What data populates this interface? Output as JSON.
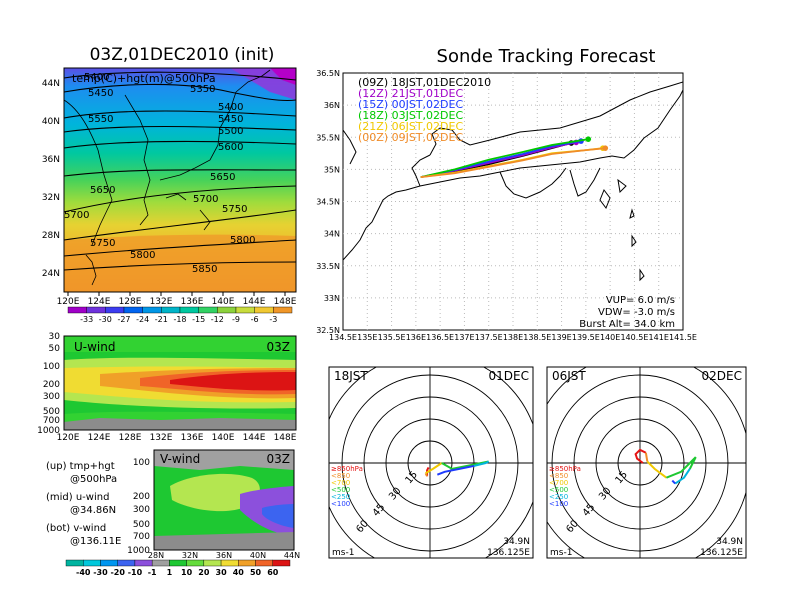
{
  "figure": {
    "left_title": "03Z,01DEC2010 (init)",
    "right_title": "Sonde Tracking Forecast"
  },
  "chart_data": [
    {
      "type": "heatmap",
      "panel": "temperature-height-map",
      "overlay_text": "temp(C)+hgt(m)@500hPa",
      "x_ticks": [
        "120E",
        "124E",
        "128E",
        "132E",
        "136E",
        "140E",
        "144E",
        "148E"
      ],
      "y_ticks": [
        "24N",
        "28N",
        "32N",
        "36N",
        "40N",
        "44N"
      ],
      "contour_labels": [
        "5400",
        "5350",
        "5450",
        "5400",
        "5450",
        "5550",
        "5500",
        "5550",
        "5600",
        "5650",
        "5650",
        "5700",
        "5750",
        "5700",
        "5750",
        "5800",
        "5800",
        "5850"
      ],
      "colorbar_labels": [
        "-33",
        "-30",
        "-27",
        "-24",
        "-21",
        "-18",
        "-15",
        "-12",
        "-9",
        "-6",
        "-3"
      ],
      "colorbar_colors": [
        "#a000c8",
        "#6e32dc",
        "#3c3cf0",
        "#0064f0",
        "#0096e6",
        "#00b4c8",
        "#00c8a0",
        "#32d264",
        "#8cd23c",
        "#c8dc3c",
        "#f0c832",
        "#f09628"
      ]
    },
    {
      "type": "heatmap",
      "panel": "u-wind-cross-section",
      "label": "U-wind",
      "time_label": "03Z",
      "x_ticks": [
        "120E",
        "124E",
        "128E",
        "132E",
        "136E",
        "140E",
        "144E",
        "148E"
      ],
      "y_ticks": [
        "30",
        "50",
        "100",
        "200",
        "300",
        "500",
        "700",
        "1000"
      ]
    },
    {
      "type": "heatmap",
      "panel": "v-wind-cross-section",
      "label": "V-wind",
      "time_label": "03Z",
      "x_ticks": [
        "28N",
        "32N",
        "36N",
        "40N",
        "44N"
      ],
      "y_ticks": [
        "100",
        "200",
        "300",
        "500",
        "700",
        "1000"
      ],
      "colorbar_labels": [
        "-40",
        "-30",
        "-20",
        "-10",
        "-1",
        "1",
        "10",
        "20",
        "30",
        "40",
        "50",
        "60"
      ],
      "colorbar_colors": [
        "#00b4a0",
        "#00c8dc",
        "#0096f0",
        "#3c64f0",
        "#8c50dc",
        "#a0a0a0",
        "#1ec832",
        "#64dc3c",
        "#b4e650",
        "#f0dc32",
        "#f0a028",
        "#f06428",
        "#dc1414"
      ]
    },
    {
      "type": "line",
      "panel": "sonde-track-map",
      "x_ticks": [
        "134.5E",
        "135E",
        "135.5E",
        "136E",
        "136.5E",
        "137E",
        "137.5E",
        "138E",
        "138.5E",
        "139E",
        "139.5E",
        "140E",
        "140.5E",
        "141E",
        "141.5E"
      ],
      "y_ticks": [
        "36.5N",
        "36N",
        "35.5N",
        "35N",
        "34.5N",
        "34N",
        "33.5N",
        "33N",
        "32.5N"
      ],
      "xlim": [
        134.5,
        141.5
      ],
      "ylim": [
        32.5,
        36.5
      ],
      "legend_entries": [
        {
          "label": "(09Z)  18JST,01DEC2010",
          "color": "#000000"
        },
        {
          "label": "(12Z)  21JST,01DEC",
          "color": "#a000c8"
        },
        {
          "label": "(15Z)  00JST,02DEC",
          "color": "#1e3cff"
        },
        {
          "label": "(18Z)  03JST,02DEC",
          "color": "#00c800"
        },
        {
          "label": "(21Z)  06JST,02DEC",
          "color": "#f0c800"
        },
        {
          "label": "(00Z)  09JST,02DEC",
          "color": "#f08c28"
        }
      ],
      "series": [
        {
          "color": "#000000",
          "x": [
            136.1,
            136.8,
            137.5,
            138.2,
            138.8,
            139.2
          ],
          "y": [
            34.88,
            34.97,
            35.08,
            35.21,
            35.33,
            35.41
          ]
        },
        {
          "color": "#a000c8",
          "x": [
            136.1,
            136.8,
            137.5,
            138.2,
            138.8,
            139.3
          ],
          "y": [
            34.88,
            34.98,
            35.1,
            35.22,
            35.34,
            35.42
          ]
        },
        {
          "color": "#1e3cff",
          "x": [
            136.1,
            136.8,
            137.5,
            138.2,
            138.8,
            139.4
          ],
          "y": [
            34.88,
            34.99,
            35.12,
            35.24,
            35.36,
            35.44
          ]
        },
        {
          "color": "#00c800",
          "x": [
            136.1,
            136.8,
            137.5,
            138.2,
            138.8,
            139.55
          ],
          "y": [
            34.88,
            35.0,
            35.15,
            35.27,
            35.38,
            35.47
          ]
        },
        {
          "color": "#f0c800",
          "x": [
            136.1,
            136.8,
            137.5,
            138.2,
            138.8,
            139.5,
            139.85
          ],
          "y": [
            34.88,
            34.95,
            35.05,
            35.15,
            35.25,
            35.3,
            35.33
          ]
        },
        {
          "color": "#f08c28",
          "x": [
            136.1,
            136.8,
            137.5,
            138.2,
            138.8,
            139.5,
            139.9
          ],
          "y": [
            34.88,
            34.94,
            35.04,
            35.14,
            35.24,
            35.3,
            35.33
          ]
        }
      ],
      "parameters": {
        "vup": "VUP=  6.0  m/s",
        "vdw": "VDW= -3.0  m/s",
        "burst": "Burst Alt= 34.0  km"
      }
    },
    {
      "type": "line",
      "panel": "hodograph-18jst",
      "time_label": "18JST",
      "date_label": "01DEC",
      "ring_labels": [
        "15",
        "30",
        "45",
        "60"
      ],
      "units": "ms-1",
      "location": [
        "34.9N",
        "136.125E"
      ],
      "legend": [
        {
          "label": "≥850hPa",
          "color": "#e61414"
        },
        {
          "label": "<850",
          "color": "#f08c28"
        },
        {
          "label": "<700",
          "color": "#f0c800"
        },
        {
          "label": "<500",
          "color": "#1ec832"
        },
        {
          "label": "<250",
          "color": "#00b4dc"
        },
        {
          "label": "<100",
          "color": "#1e3cff"
        }
      ],
      "series": [
        {
          "color": "#e61414",
          "u": [
            -1,
            -2,
            -2
          ],
          "v": [
            -3,
            -5,
            -9
          ]
        },
        {
          "color": "#f08c28",
          "u": [
            -2,
            -3
          ],
          "v": [
            -9,
            -7
          ]
        },
        {
          "color": "#f0c800",
          "u": [
            -3,
            2,
            8
          ],
          "v": [
            -7,
            -4,
            0
          ]
        },
        {
          "color": "#1ec832",
          "u": [
            8,
            15,
            25,
            40
          ],
          "v": [
            0,
            -4,
            -2,
            1
          ]
        },
        {
          "color": "#00b4dc",
          "u": [
            40,
            38,
            30
          ],
          "v": [
            1,
            0,
            -2
          ]
        },
        {
          "color": "#1e3cff",
          "u": [
            30,
            20,
            10,
            5
          ],
          "v": [
            -2,
            -4,
            -6,
            -8
          ]
        }
      ]
    },
    {
      "type": "line",
      "panel": "hodograph-06jst",
      "time_label": "06JST",
      "date_label": "02DEC",
      "ring_labels": [
        "15",
        "30",
        "45",
        "60"
      ],
      "units": "ms-1",
      "location": [
        "34.9N",
        "136.125E"
      ],
      "legend": [
        {
          "label": "≥850hPa",
          "color": "#e61414"
        },
        {
          "label": "<850",
          "color": "#f08c28"
        },
        {
          "label": "<700",
          "color": "#f0c800"
        },
        {
          "label": "<500",
          "color": "#1ec832"
        },
        {
          "label": "<250",
          "color": "#00b4dc"
        },
        {
          "label": "<100",
          "color": "#1e3cff"
        }
      ],
      "series": [
        {
          "color": "#e61414",
          "u": [
            2,
            -2,
            -3,
            0,
            4
          ],
          "v": [
            0,
            3,
            6,
            9,
            7
          ]
        },
        {
          "color": "#f08c28",
          "u": [
            4,
            5
          ],
          "v": [
            7,
            1
          ]
        },
        {
          "color": "#f0c800",
          "u": [
            5,
            10,
            18
          ],
          "v": [
            1,
            -4,
            -10
          ]
        },
        {
          "color": "#1ec832",
          "u": [
            18,
            28,
            38,
            34
          ],
          "v": [
            -10,
            -6,
            4,
            -4
          ]
        },
        {
          "color": "#00b4dc",
          "u": [
            34,
            30,
            24
          ],
          "v": [
            -4,
            -10,
            -14
          ]
        },
        {
          "color": "#1e3cff",
          "u": [
            24,
            22
          ],
          "v": [
            -14,
            -12
          ]
        }
      ]
    }
  ],
  "side_text": {
    "up_label": "(up) tmp+hgt",
    "up_sub": "@500hPa",
    "mid_label": "(mid) u-wind",
    "mid_sub": "@34.86N",
    "bot_label": "(bot) v-wind",
    "bot_sub": "@136.11E"
  }
}
